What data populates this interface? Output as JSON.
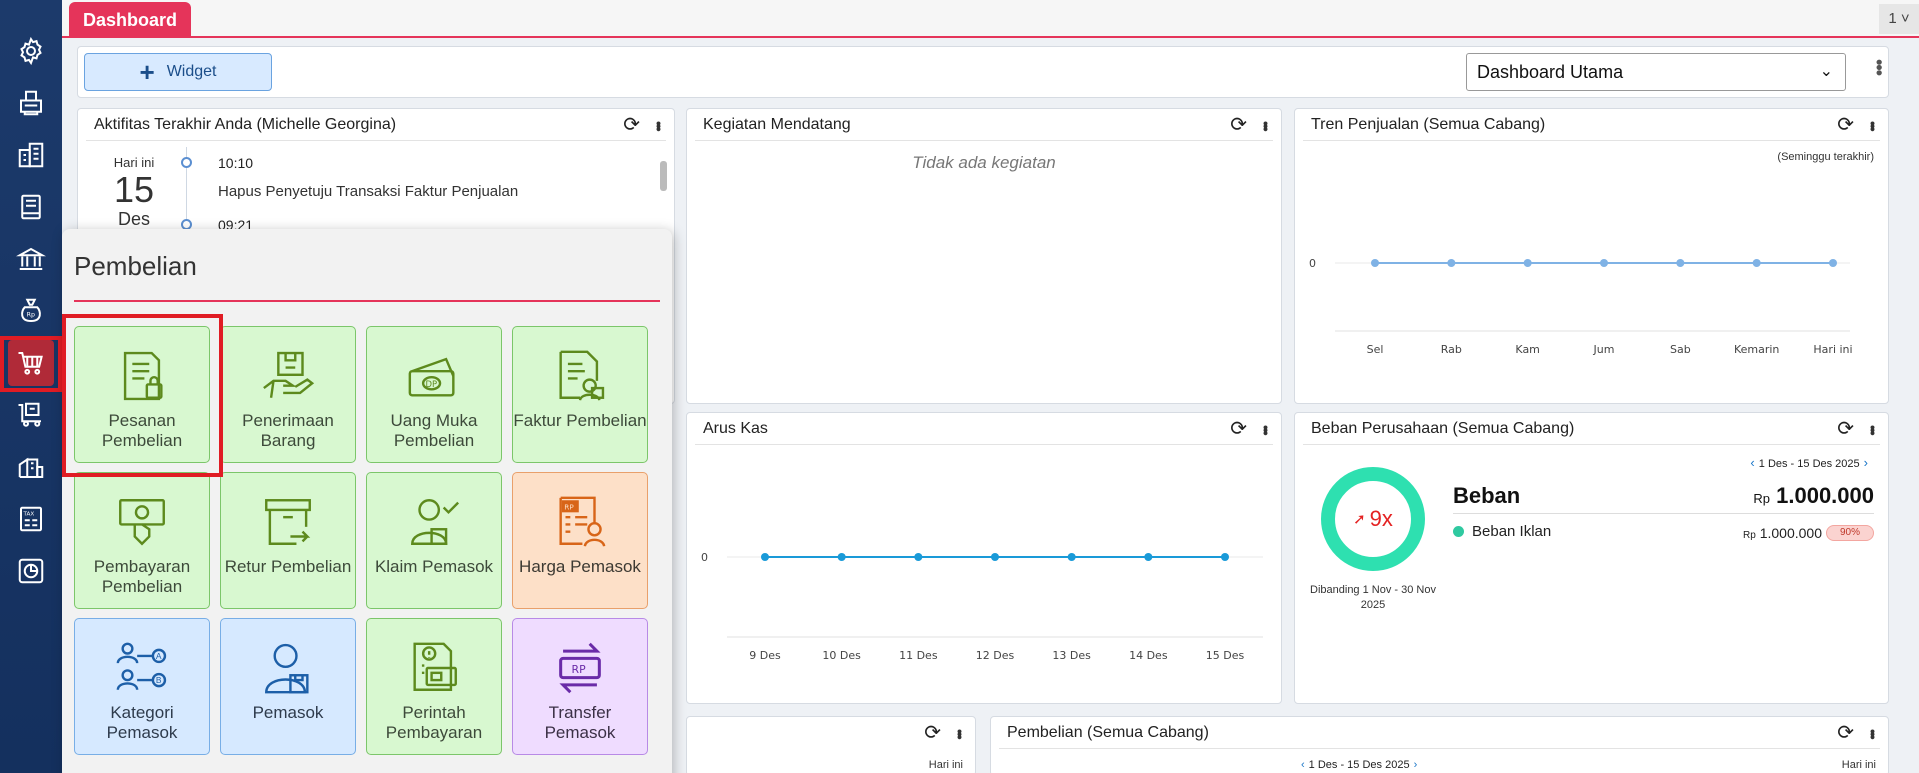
{
  "top": {
    "tab_label": "Dashboard",
    "right_number": "1"
  },
  "toolbar": {
    "widget_label": "Widget",
    "dashboard_select": "Dashboard Utama"
  },
  "sidebar": {
    "items": [
      "gear-icon",
      "printer-icon",
      "building-icon",
      "book-icon",
      "bank-icon",
      "money-bag-icon",
      "cart-icon",
      "delivery-icon",
      "warehouse-icon",
      "tax-icon",
      "report-icon"
    ],
    "active": "cart-icon"
  },
  "panels": {
    "activity": {
      "title": "Aktifitas Terakhir Anda (Michelle Georgina)",
      "day_label": "Hari ini",
      "date_number": "15",
      "month": "Des",
      "entries": [
        {
          "time": "10:10",
          "desc": "Hapus Penyetuju Transaksi Faktur Penjualan"
        },
        {
          "time": "09:21",
          "desc": ""
        }
      ]
    },
    "upcoming": {
      "title": "Kegiatan Mendatang",
      "empty": "Tidak ada kegiatan"
    },
    "sales_trend": {
      "title": "Tren Penjualan (Semua Cabang)",
      "note": "(Seminggu terakhir)"
    },
    "cashflow": {
      "title": "Arus Kas"
    },
    "expenses": {
      "title": "Beban Perusahaan (Semua Cabang)",
      "range": "1 Des - 15 Des 2025",
      "ratio": "9x",
      "compare": "Dibanding 1 Nov - 30 Nov 2025",
      "heading": "Beban",
      "currency": "Rp",
      "total": "1.000.000",
      "rows": [
        {
          "name": "Beban Iklan",
          "value": "1.000.000",
          "pct": "90%"
        }
      ]
    },
    "bottom_small": {
      "note": "Hari ini"
    },
    "purchases": {
      "title": "Pembelian (Semua Cabang)",
      "range": "1 Des - 15 Des 2025",
      "note": "Hari ini"
    }
  },
  "chart_data": [
    {
      "type": "line",
      "title": "Tren Penjualan (Semua Cabang)",
      "categories": [
        "Sel",
        "Rab",
        "Kam",
        "Jum",
        "Sab",
        "Kemarin",
        "Hari ini"
      ],
      "values": [
        0,
        0,
        0,
        0,
        0,
        0,
        0
      ],
      "ytick": "0",
      "color": "#7fb2e5"
    },
    {
      "type": "line",
      "title": "Arus Kas",
      "categories": [
        "9 Des",
        "10 Des",
        "11 Des",
        "12 Des",
        "13 Des",
        "14 Des",
        "15 Des"
      ],
      "values": [
        0,
        0,
        0,
        0,
        0,
        0,
        0
      ],
      "ytick": "0",
      "color": "#1a9ad8"
    }
  ],
  "menu": {
    "title": "Pembelian",
    "tiles": [
      {
        "label": "Pesanan Pembelian",
        "icon": "purchase-order-icon",
        "color": "green"
      },
      {
        "label": "Penerimaan Barang",
        "icon": "goods-receipt-icon",
        "color": "green"
      },
      {
        "label": "Uang Muka Pembelian",
        "icon": "down-payment-icon",
        "color": "green"
      },
      {
        "label": "Faktur Pembelian",
        "icon": "purchase-invoice-icon",
        "color": "green"
      },
      {
        "label": "Pembayaran Pembelian",
        "icon": "purchase-payment-icon",
        "color": "green"
      },
      {
        "label": "Retur Pembelian",
        "icon": "purchase-return-icon",
        "color": "green"
      },
      {
        "label": "Klaim Pemasok",
        "icon": "supplier-claim-icon",
        "color": "green"
      },
      {
        "label": "Harga Pemasok",
        "icon": "supplier-price-icon",
        "color": "orange"
      },
      {
        "label": "Kategori Pemasok",
        "icon": "supplier-category-icon",
        "color": "blue"
      },
      {
        "label": "Pemasok",
        "icon": "supplier-icon",
        "color": "blue"
      },
      {
        "label": "Perintah Pembayaran",
        "icon": "payment-order-icon",
        "color": "green"
      },
      {
        "label": "Transfer Pemasok",
        "icon": "supplier-transfer-icon",
        "color": "purple"
      }
    ]
  }
}
